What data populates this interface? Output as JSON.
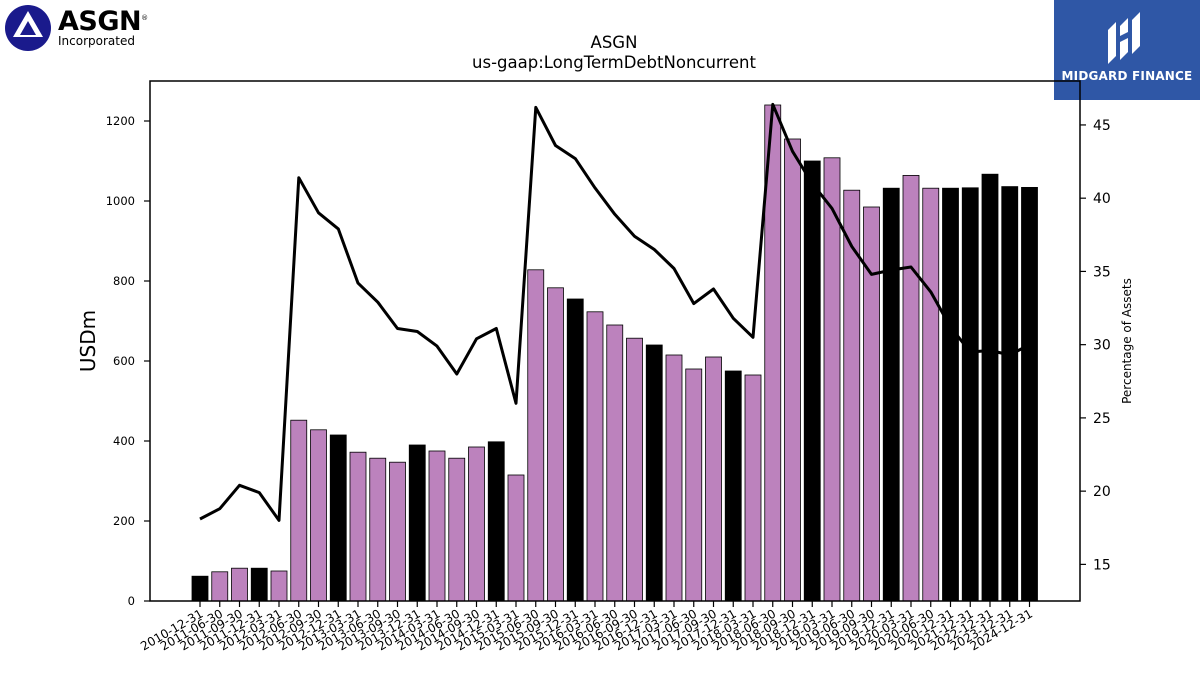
{
  "branding": {
    "left_logo": {
      "name": "ASGN",
      "subtitle": "Incorporated",
      "registered": "®",
      "color": "#1a1a8c"
    },
    "right_logo": {
      "name": "MIDGARD FINANCE",
      "background": "#2f57a6"
    }
  },
  "chart_data": {
    "type": "bar",
    "title": "ASGN",
    "subtitle": "us-gaap:LongTermDebtNoncurrent",
    "ylabel": "USDm",
    "y2label": "Percentage of Assets",
    "ylim": [
      0,
      1300
    ],
    "y2lim": [
      12.5,
      48
    ],
    "yticks": [
      0,
      200,
      400,
      600,
      800,
      1000,
      1200
    ],
    "y2ticks": [
      15,
      20,
      25,
      30,
      35,
      40,
      45
    ],
    "colors": {
      "annual": "#000000",
      "quarterly": "#bc82bd",
      "line": "#000000"
    },
    "categories": [
      "2010-12-31",
      "2011-06-30",
      "2011-09-30",
      "2011-12-31",
      "2012-03-31",
      "2012-06-30",
      "2012-09-30",
      "2012-12-31",
      "2013-03-31",
      "2013-06-30",
      "2013-09-30",
      "2013-12-31",
      "2014-03-31",
      "2014-06-30",
      "2014-09-30",
      "2014-12-31",
      "2015-03-31",
      "2015-06-30",
      "2015-09-30",
      "2015-12-31",
      "2016-03-31",
      "2016-06-30",
      "2016-09-30",
      "2016-12-31",
      "2017-03-31",
      "2017-06-30",
      "2017-09-30",
      "2017-12-31",
      "2018-03-31",
      "2018-06-30",
      "2018-09-30",
      "2018-12-31",
      "2019-03-31",
      "2019-06-30",
      "2019-09-30",
      "2019-12-31",
      "2020-03-31",
      "2020-06-30",
      "2020-12-31",
      "2021-12-31",
      "2022-12-31",
      "2023-12-31",
      "2024-12-31"
    ],
    "series": [
      {
        "kind": "bar",
        "values": [
          62,
          73,
          82,
          82,
          75,
          452,
          428,
          415,
          372,
          357,
          347,
          390,
          375,
          357,
          385,
          398,
          315,
          828,
          783,
          755,
          723,
          690,
          657,
          640,
          615,
          580,
          610,
          575,
          565,
          1240,
          1155,
          1100,
          1108,
          1027,
          985,
          1032,
          1064,
          1032,
          1032,
          1033,
          1067,
          1036,
          1034
        ],
        "annual": [
          true,
          false,
          false,
          true,
          false,
          false,
          false,
          true,
          false,
          false,
          false,
          true,
          false,
          false,
          false,
          true,
          false,
          false,
          false,
          true,
          false,
          false,
          false,
          true,
          false,
          false,
          false,
          true,
          false,
          false,
          false,
          true,
          false,
          false,
          false,
          true,
          false,
          false,
          true,
          true,
          true,
          true,
          true
        ]
      },
      {
        "kind": "line",
        "axis": "right",
        "values": [
          18.1,
          18.8,
          20.4,
          19.9,
          18.0,
          41.4,
          39.0,
          37.9,
          34.2,
          32.9,
          31.1,
          30.9,
          29.9,
          28.0,
          30.4,
          31.1,
          26.0,
          46.2,
          43.6,
          42.7,
          40.7,
          38.9,
          37.4,
          36.5,
          35.2,
          32.8,
          33.8,
          31.8,
          30.5,
          46.4,
          43.2,
          41.0,
          39.3,
          36.7,
          34.8,
          35.1,
          35.3,
          33.6,
          31.2,
          29.5,
          29.6,
          29.3,
          30.0
        ]
      }
    ]
  }
}
